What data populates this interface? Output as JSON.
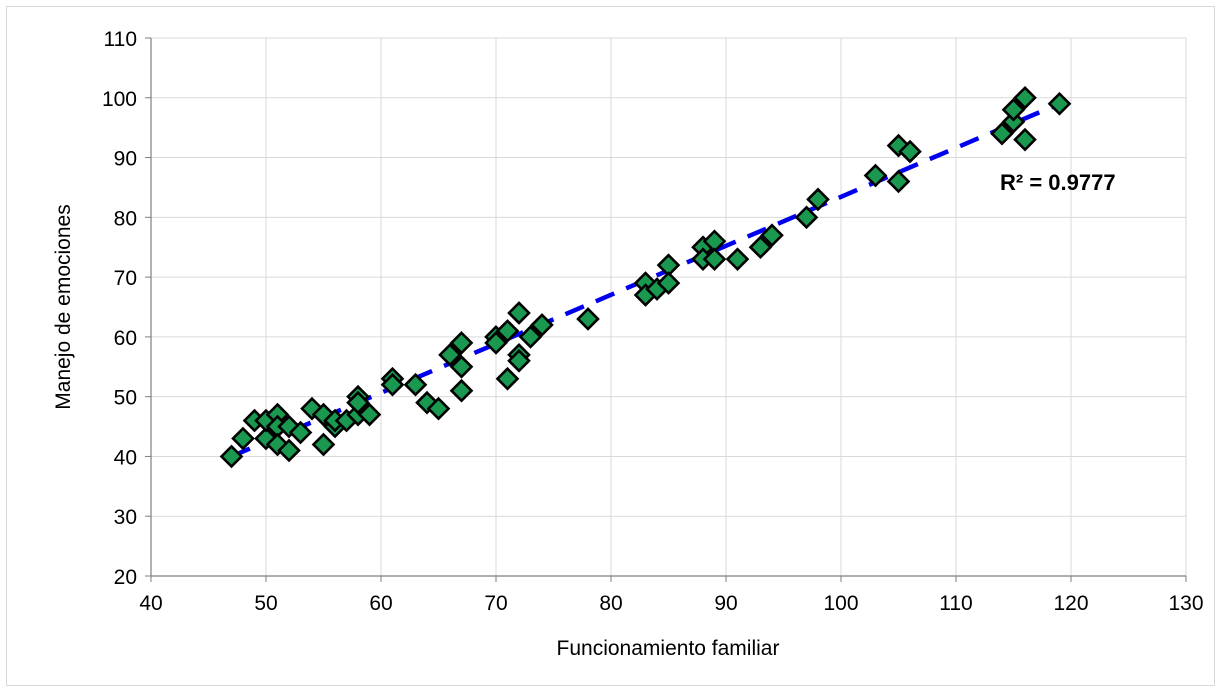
{
  "chart_data": {
    "type": "scatter",
    "xlabel": "Funcionamiento familiar",
    "ylabel": "Manejo de emociones",
    "xlim": [
      40,
      130
    ],
    "ylim": [
      20,
      110
    ],
    "xticks": [
      40,
      50,
      60,
      70,
      80,
      90,
      100,
      110,
      120,
      130
    ],
    "yticks": [
      20,
      30,
      40,
      50,
      60,
      70,
      80,
      90,
      100,
      110
    ],
    "x_tick_labels": [
      "40",
      "50",
      "60",
      "70",
      "80",
      "90",
      "100",
      "110",
      "120",
      "130"
    ],
    "y_tick_labels": [
      "20",
      "30",
      "40",
      "50",
      "60",
      "70",
      "80",
      "90",
      "100",
      "110"
    ],
    "grid": true,
    "legend": "none",
    "marker": "diamond",
    "marker_color": "#1a9850",
    "marker_edge_color": "#000000",
    "trendline_color": "#0000ee",
    "trendline_style": "dashed",
    "trendline": {
      "type": "linear",
      "x": [
        47,
        119
      ],
      "y": [
        40,
        99
      ]
    },
    "r_squared_label": "R² = 0.9777",
    "points": [
      {
        "x": 47,
        "y": 40
      },
      {
        "x": 48,
        "y": 43
      },
      {
        "x": 49,
        "y": 46
      },
      {
        "x": 50,
        "y": 43
      },
      {
        "x": 50,
        "y": 46
      },
      {
        "x": 51,
        "y": 47
      },
      {
        "x": 51,
        "y": 45
      },
      {
        "x": 51,
        "y": 42
      },
      {
        "x": 52,
        "y": 41
      },
      {
        "x": 52,
        "y": 45
      },
      {
        "x": 53,
        "y": 44
      },
      {
        "x": 54,
        "y": 48
      },
      {
        "x": 55,
        "y": 47
      },
      {
        "x": 55,
        "y": 42
      },
      {
        "x": 56,
        "y": 45
      },
      {
        "x": 56,
        "y": 46
      },
      {
        "x": 57,
        "y": 46
      },
      {
        "x": 58,
        "y": 50
      },
      {
        "x": 58,
        "y": 47
      },
      {
        "x": 58,
        "y": 49
      },
      {
        "x": 59,
        "y": 47
      },
      {
        "x": 61,
        "y": 53
      },
      {
        "x": 61,
        "y": 52
      },
      {
        "x": 63,
        "y": 52
      },
      {
        "x": 64,
        "y": 49
      },
      {
        "x": 65,
        "y": 48
      },
      {
        "x": 66,
        "y": 57
      },
      {
        "x": 67,
        "y": 59
      },
      {
        "x": 67,
        "y": 55
      },
      {
        "x": 67,
        "y": 51
      },
      {
        "x": 70,
        "y": 60
      },
      {
        "x": 70,
        "y": 59
      },
      {
        "x": 71,
        "y": 61
      },
      {
        "x": 71,
        "y": 53
      },
      {
        "x": 72,
        "y": 64
      },
      {
        "x": 72,
        "y": 57
      },
      {
        "x": 72,
        "y": 56
      },
      {
        "x": 73,
        "y": 60
      },
      {
        "x": 74,
        "y": 62
      },
      {
        "x": 78,
        "y": 63
      },
      {
        "x": 83,
        "y": 69
      },
      {
        "x": 83,
        "y": 67
      },
      {
        "x": 84,
        "y": 68
      },
      {
        "x": 85,
        "y": 72
      },
      {
        "x": 85,
        "y": 69
      },
      {
        "x": 88,
        "y": 75
      },
      {
        "x": 88,
        "y": 73
      },
      {
        "x": 89,
        "y": 76
      },
      {
        "x": 89,
        "y": 73
      },
      {
        "x": 91,
        "y": 73
      },
      {
        "x": 93,
        "y": 75
      },
      {
        "x": 94,
        "y": 77
      },
      {
        "x": 97,
        "y": 80
      },
      {
        "x": 98,
        "y": 83
      },
      {
        "x": 103,
        "y": 87
      },
      {
        "x": 105,
        "y": 92
      },
      {
        "x": 105,
        "y": 86
      },
      {
        "x": 106,
        "y": 91
      },
      {
        "x": 114,
        "y": 94
      },
      {
        "x": 115,
        "y": 96
      },
      {
        "x": 115,
        "y": 98
      },
      {
        "x": 116,
        "y": 100
      },
      {
        "x": 116,
        "y": 93
      },
      {
        "x": 119,
        "y": 99
      }
    ]
  }
}
